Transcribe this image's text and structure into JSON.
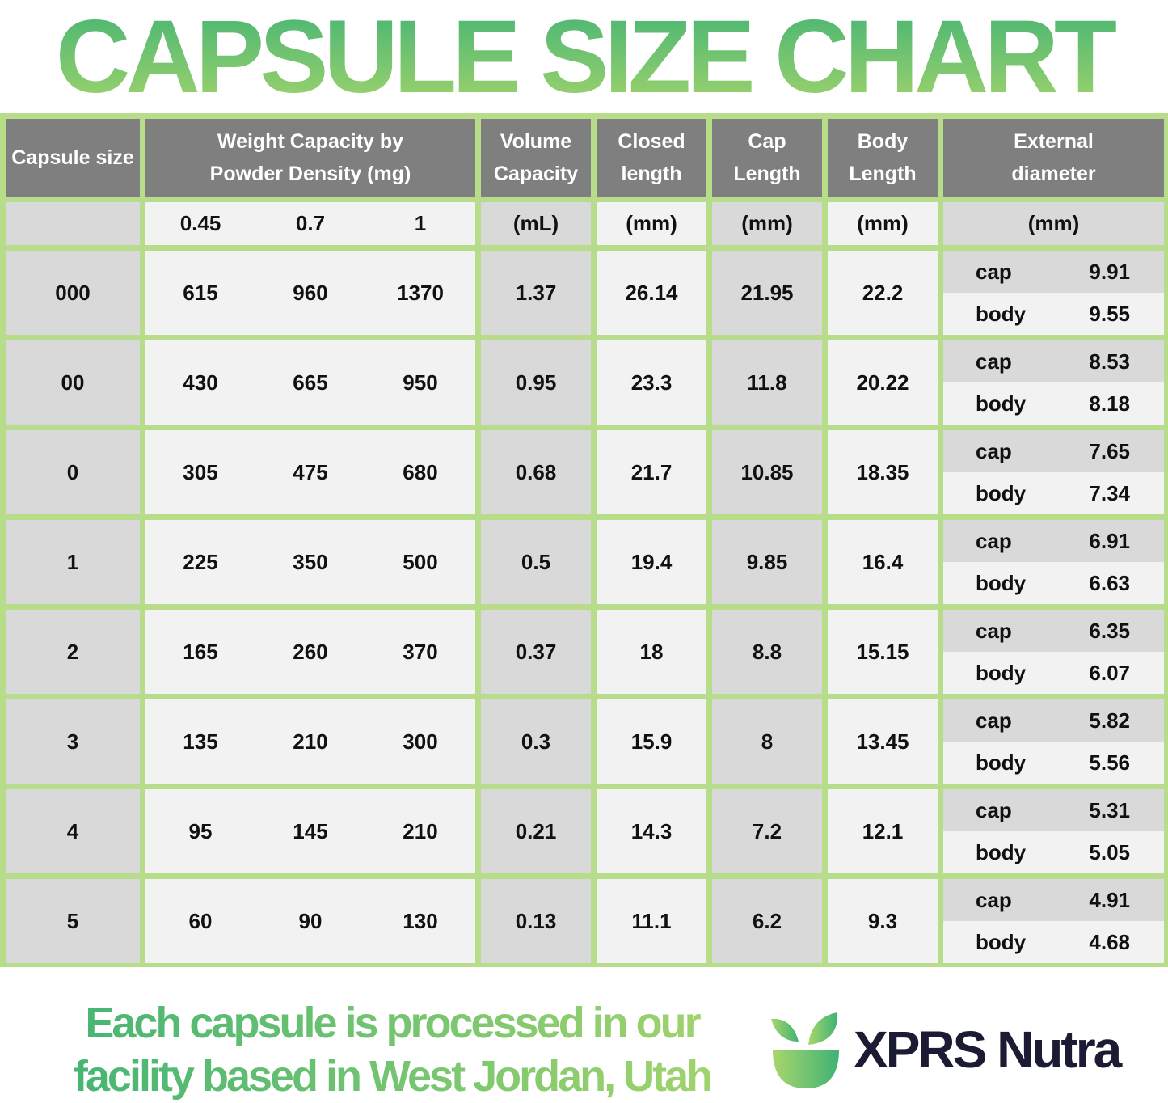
{
  "title": "CAPSULE SIZE CHART",
  "headers": {
    "size": "Capsule size",
    "weight": "Weight Capacity by Powder Density (mg)",
    "volume": "Volume Capacity",
    "closed": "Closed length",
    "cap": "Cap Length",
    "body": "Body Length",
    "diameter": "External diameter"
  },
  "units": {
    "densities": [
      "0.45",
      "0.7",
      "1"
    ],
    "volume": "(mL)",
    "closed": "(mm)",
    "cap": "(mm)",
    "body": "(mm)",
    "diameter": "(mm)"
  },
  "diameter_labels": {
    "cap": "cap",
    "body": "body"
  },
  "rows": [
    {
      "size": "000",
      "weights": [
        "615",
        "960",
        "1370"
      ],
      "volume": "1.37",
      "closed": "26.14",
      "cap": "21.95",
      "body": "22.2",
      "d_cap": "9.91",
      "d_body": "9.55"
    },
    {
      "size": "00",
      "weights": [
        "430",
        "665",
        "950"
      ],
      "volume": "0.95",
      "closed": "23.3",
      "cap": "11.8",
      "body": "20.22",
      "d_cap": "8.53",
      "d_body": "8.18"
    },
    {
      "size": "0",
      "weights": [
        "305",
        "475",
        "680"
      ],
      "volume": "0.68",
      "closed": "21.7",
      "cap": "10.85",
      "body": "18.35",
      "d_cap": "7.65",
      "d_body": "7.34"
    },
    {
      "size": "1",
      "weights": [
        "225",
        "350",
        "500"
      ],
      "volume": "0.5",
      "closed": "19.4",
      "cap": "9.85",
      "body": "16.4",
      "d_cap": "6.91",
      "d_body": "6.63"
    },
    {
      "size": "2",
      "weights": [
        "165",
        "260",
        "370"
      ],
      "volume": "0.37",
      "closed": "18",
      "cap": "8.8",
      "body": "15.15",
      "d_cap": "6.35",
      "d_body": "6.07"
    },
    {
      "size": "3",
      "weights": [
        "135",
        "210",
        "300"
      ],
      "volume": "0.3",
      "closed": "15.9",
      "cap": "8",
      "body": "13.45",
      "d_cap": "5.82",
      "d_body": "5.56"
    },
    {
      "size": "4",
      "weights": [
        "95",
        "145",
        "210"
      ],
      "volume": "0.21",
      "closed": "14.3",
      "cap": "7.2",
      "body": "12.1",
      "d_cap": "5.31",
      "d_body": "5.05"
    },
    {
      "size": "5",
      "weights": [
        "60",
        "90",
        "130"
      ],
      "volume": "0.13",
      "closed": "11.1",
      "cap": "6.2",
      "body": "9.3",
      "d_cap": "4.91",
      "d_body": "4.68"
    }
  ],
  "footer": {
    "line1": "Each capsule is processed in our",
    "line2": "facility based in West Jordan, Utah"
  },
  "brand": "XPRS Nutra",
  "colors": {
    "frame": "#b7dd8b",
    "header": "#7f7f7f",
    "title_green": "#3fb274",
    "brand_text": "#1b1b33"
  }
}
